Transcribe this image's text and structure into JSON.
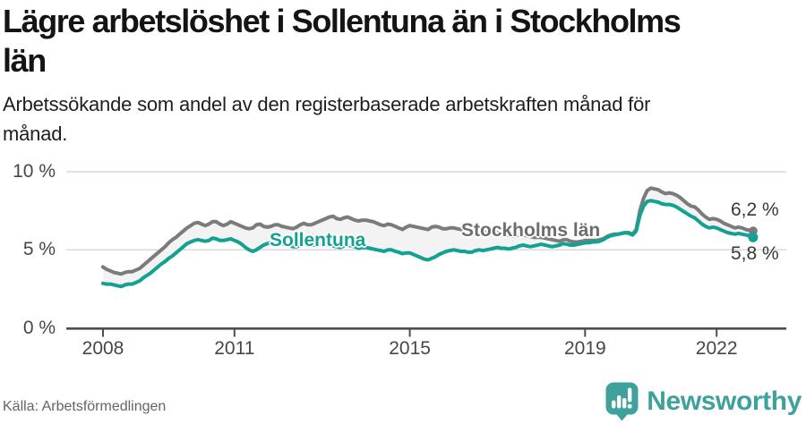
{
  "header": {
    "title_lines": [
      "Lägre arbetslöshet i Sollentuna än i Stockholms",
      "län"
    ],
    "subtitle_lines": [
      "Arbetssökande som andel av den registerbaserade arbetskraften månad för",
      "månad."
    ]
  },
  "footer": {
    "source": "Källa: Arbetsförmedlingen",
    "brand": "Newsworthy"
  },
  "colors": {
    "teal": "#12a192",
    "gray": "#7b7b7b",
    "label_gray": "#6d6d6d",
    "band": "#f3f3f3",
    "grid": "#d9d9d9",
    "axis": "#4d4d4d",
    "tick_text": "#474747",
    "title_text": "#141414",
    "subtitle_text": "#1e1e1e",
    "end_label_text": "#383838",
    "source_text": "#646464",
    "brand": "#3fa19b"
  },
  "chart_data": {
    "type": "line",
    "title": "Lägre arbetslöshet i Sollentuna än i Stockholms län",
    "subtitle": "Arbetssökande som andel av den registerbaserade arbetskraften månad för månad.",
    "unit": "%",
    "x_start_year": 2008,
    "points_per_year": 12,
    "xlim": [
      2008,
      2022.92
    ],
    "ylim": [
      0,
      10.5
    ],
    "grid": "horizontal",
    "legend": "inline-labels",
    "band_between_series": true,
    "x_ticks": [
      {
        "value": 2008,
        "label": "2008"
      },
      {
        "value": 2011,
        "label": "2011"
      },
      {
        "value": 2015,
        "label": "2015"
      },
      {
        "value": 2019,
        "label": "2019"
      },
      {
        "value": 2022,
        "label": "2022"
      }
    ],
    "y_ticks": [
      {
        "value": 0,
        "label": "0 %"
      },
      {
        "value": 5,
        "label": "5 %"
      },
      {
        "value": 10,
        "label": "10 %"
      }
    ],
    "series": [
      {
        "name": "Stockholms län",
        "end_label": "6,2 %",
        "end_value": 6.2,
        "values": [
          3.9,
          3.75,
          3.65,
          3.55,
          3.5,
          3.45,
          3.55,
          3.6,
          3.6,
          3.7,
          3.8,
          4.0,
          4.2,
          4.4,
          4.6,
          4.8,
          5.0,
          5.2,
          5.45,
          5.65,
          5.8,
          6.0,
          6.2,
          6.4,
          6.55,
          6.7,
          6.75,
          6.65,
          6.55,
          6.65,
          6.8,
          6.8,
          6.65,
          6.55,
          6.65,
          6.8,
          6.7,
          6.6,
          6.5,
          6.4,
          6.35,
          6.4,
          6.6,
          6.65,
          6.5,
          6.45,
          6.5,
          6.6,
          6.6,
          6.5,
          6.45,
          6.4,
          6.35,
          6.45,
          6.6,
          6.7,
          6.6,
          6.6,
          6.7,
          6.8,
          6.9,
          7.0,
          7.1,
          7.15,
          7.0,
          6.95,
          7.05,
          7.1,
          7.0,
          6.9,
          6.85,
          6.9,
          6.9,
          6.85,
          6.8,
          6.7,
          6.6,
          6.55,
          6.65,
          6.6,
          6.5,
          6.4,
          6.3,
          6.45,
          6.55,
          6.5,
          6.45,
          6.4,
          6.35,
          6.3,
          6.45,
          6.5,
          6.45,
          6.35,
          6.35,
          6.4,
          6.4,
          6.35,
          6.3,
          6.3,
          6.25,
          6.2,
          6.3,
          6.3,
          6.2,
          6.15,
          6.1,
          6.1,
          6.1,
          6.05,
          6.0,
          5.95,
          5.9,
          5.9,
          6.0,
          6.0,
          5.9,
          5.85,
          5.8,
          5.8,
          5.8,
          5.75,
          5.7,
          5.65,
          5.6,
          5.55,
          5.65,
          5.65,
          5.55,
          5.5,
          5.5,
          5.55,
          5.6,
          5.6,
          5.6,
          5.6,
          5.65,
          5.7,
          5.85,
          5.95,
          6.0,
          6.0,
          6.05,
          6.1,
          6.1,
          6.0,
          6.3,
          7.5,
          8.3,
          8.8,
          8.95,
          8.9,
          8.85,
          8.7,
          8.6,
          8.65,
          8.6,
          8.5,
          8.35,
          8.15,
          7.95,
          7.8,
          7.75,
          7.55,
          7.3,
          7.1,
          6.95,
          7.0,
          6.95,
          6.85,
          6.7,
          6.6,
          6.5,
          6.4,
          6.45,
          6.4,
          6.3,
          6.25,
          6.2
        ]
      },
      {
        "name": "Sollentuna",
        "end_label": "5,8 %",
        "end_value": 5.8,
        "values": [
          2.85,
          2.8,
          2.8,
          2.75,
          2.7,
          2.65,
          2.75,
          2.8,
          2.8,
          2.9,
          3.0,
          3.2,
          3.35,
          3.5,
          3.7,
          3.9,
          4.1,
          4.25,
          4.45,
          4.6,
          4.8,
          5.0,
          5.2,
          5.4,
          5.5,
          5.6,
          5.65,
          5.6,
          5.55,
          5.6,
          5.75,
          5.7,
          5.6,
          5.6,
          5.65,
          5.7,
          5.6,
          5.5,
          5.35,
          5.15,
          5.0,
          4.9,
          5.0,
          5.15,
          5.3,
          5.4,
          5.45,
          5.4,
          5.45,
          5.4,
          5.35,
          5.3,
          5.2,
          5.2,
          5.3,
          5.4,
          5.35,
          5.3,
          5.3,
          5.35,
          5.4,
          5.35,
          5.3,
          5.25,
          5.2,
          5.15,
          5.25,
          5.3,
          5.25,
          5.2,
          5.1,
          5.15,
          5.15,
          5.1,
          5.05,
          5.0,
          4.95,
          4.9,
          5.0,
          5.0,
          4.9,
          4.85,
          4.75,
          4.8,
          4.8,
          4.7,
          4.6,
          4.5,
          4.4,
          4.35,
          4.45,
          4.55,
          4.7,
          4.8,
          4.9,
          4.95,
          5.0,
          4.95,
          4.9,
          4.9,
          4.85,
          4.85,
          4.95,
          5.0,
          4.95,
          5.0,
          5.05,
          5.1,
          5.15,
          5.1,
          5.1,
          5.05,
          5.1,
          5.15,
          5.25,
          5.3,
          5.25,
          5.2,
          5.25,
          5.3,
          5.35,
          5.3,
          5.25,
          5.2,
          5.25,
          5.3,
          5.4,
          5.35,
          5.3,
          5.3,
          5.35,
          5.4,
          5.45,
          5.45,
          5.5,
          5.5,
          5.55,
          5.65,
          5.8,
          5.9,
          5.95,
          6.0,
          6.05,
          6.1,
          6.05,
          5.95,
          6.2,
          7.2,
          7.8,
          8.1,
          8.15,
          8.1,
          8.05,
          7.95,
          7.9,
          7.9,
          7.85,
          7.75,
          7.6,
          7.45,
          7.3,
          7.15,
          7.05,
          6.85,
          6.65,
          6.5,
          6.4,
          6.45,
          6.4,
          6.3,
          6.2,
          6.1,
          6.05,
          6.0,
          6.05,
          6.0,
          5.95,
          5.9,
          5.8
        ]
      }
    ]
  }
}
